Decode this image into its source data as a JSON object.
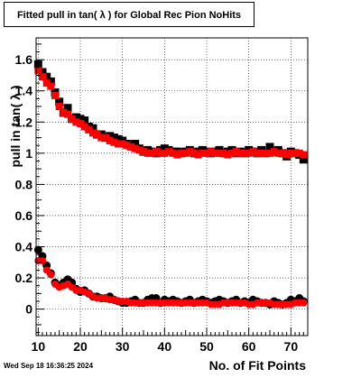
{
  "chart_data": {
    "type": "scatter",
    "title": "Fitted pull in tan( λ ) for Global Rec Pion NoHits",
    "xlabel": "No. of Fit Points",
    "ylabel": "pull in tan( λ )",
    "xlim": [
      9.5,
      74
    ],
    "ylim": [
      -0.17,
      1.74
    ],
    "xticks": [
      10,
      20,
      30,
      40,
      50,
      60,
      70
    ],
    "yticks": [
      0,
      0.2,
      0.4,
      0.6,
      0.8,
      1,
      1.2,
      1.4,
      1.6
    ],
    "ytick_labels": [
      "0",
      "0.2",
      "0.4",
      "0.6",
      "0.8",
      "1",
      "1.2",
      "1.4",
      "1.6"
    ],
    "grid": true,
    "series": [
      {
        "marker": "square",
        "color": "#000000",
        "x": [
          10,
          11,
          12,
          13,
          14,
          15,
          16,
          17,
          18,
          19,
          20,
          21,
          22,
          23,
          24,
          25,
          26,
          27,
          28,
          29,
          30,
          31,
          32,
          33,
          34,
          35,
          36,
          37,
          38,
          39,
          40,
          41,
          42,
          43,
          44,
          45,
          46,
          47,
          48,
          49,
          50,
          51,
          52,
          53,
          54,
          55,
          56,
          57,
          58,
          59,
          60,
          61,
          62,
          63,
          64,
          65,
          66,
          67,
          68,
          69,
          70,
          71,
          72,
          73
        ],
        "y": [
          1.57,
          1.52,
          1.49,
          1.46,
          1.39,
          1.33,
          1.26,
          1.29,
          1.22,
          1.23,
          1.22,
          1.21,
          1.17,
          1.16,
          1.12,
          1.12,
          1.1,
          1.11,
          1.1,
          1.09,
          1.08,
          1.06,
          1.05,
          1.06,
          1.03,
          1.01,
          1.02,
          1.01,
          1.0,
          1.02,
          1.03,
          1.02,
          1.01,
          1.01,
          1.0,
          1.01,
          1.02,
          1.0,
          1.01,
          1.02,
          1.01,
          1.0,
          1.01,
          1.02,
          1.0,
          1.01,
          1.02,
          1.0,
          1.01,
          1.0,
          1.02,
          1.01,
          1.0,
          1.02,
          1.0,
          1.04,
          1.01,
          1.02,
          1.0,
          0.98,
          1.01,
          1.0,
          0.99,
          0.96
        ]
      },
      {
        "marker": "square",
        "color": "#ff0000",
        "x": [
          10,
          11,
          12,
          13,
          14,
          15,
          16,
          17,
          18,
          19,
          20,
          21,
          22,
          23,
          24,
          25,
          26,
          27,
          28,
          29,
          30,
          31,
          32,
          33,
          34,
          35,
          36,
          37,
          38,
          39,
          40,
          41,
          42,
          43,
          44,
          45,
          46,
          47,
          48,
          49,
          50,
          51,
          52,
          53,
          54,
          55,
          56,
          57,
          58,
          59,
          60,
          61,
          62,
          63,
          64,
          65,
          66,
          67,
          68,
          69,
          70,
          71,
          72,
          73
        ],
        "y": [
          1.53,
          1.49,
          1.45,
          1.43,
          1.37,
          1.3,
          1.26,
          1.25,
          1.22,
          1.2,
          1.19,
          1.17,
          1.15,
          1.13,
          1.12,
          1.1,
          1.1,
          1.08,
          1.07,
          1.06,
          1.06,
          1.05,
          1.04,
          1.03,
          1.02,
          1.01,
          1.0,
          1.0,
          1.01,
          1.0,
          1.0,
          1.01,
          1.0,
          0.99,
          1.0,
          1.0,
          1.01,
          1.0,
          0.99,
          1.0,
          1.0,
          1.01,
          1.0,
          1.0,
          1.0,
          0.99,
          1.0,
          1.01,
          1.0,
          1.0,
          1.0,
          1.01,
          1.0,
          1.0,
          1.0,
          1.0,
          1.01,
          1.0,
          1.0,
          0.99,
          1.0,
          1.0,
          1.0,
          0.99
        ]
      },
      {
        "marker": "circle",
        "color": "#000000",
        "x": [
          10,
          11,
          12,
          13,
          14,
          15,
          16,
          17,
          18,
          19,
          20,
          21,
          22,
          23,
          24,
          25,
          26,
          27,
          28,
          29,
          30,
          31,
          32,
          33,
          34,
          35,
          36,
          37,
          38,
          39,
          40,
          41,
          42,
          43,
          44,
          45,
          46,
          47,
          48,
          49,
          50,
          51,
          52,
          53,
          54,
          55,
          56,
          57,
          58,
          59,
          60,
          61,
          62,
          63,
          64,
          65,
          66,
          67,
          68,
          69,
          70,
          71,
          72,
          73
        ],
        "y": [
          0.38,
          0.34,
          0.28,
          0.23,
          0.17,
          0.15,
          0.17,
          0.19,
          0.17,
          0.13,
          0.11,
          0.12,
          0.1,
          0.08,
          0.08,
          0.07,
          0.07,
          0.08,
          0.06,
          0.05,
          0.04,
          0.04,
          0.05,
          0.06,
          0.04,
          0.04,
          0.06,
          0.07,
          0.07,
          0.04,
          0.06,
          0.05,
          0.06,
          0.05,
          0.04,
          0.05,
          0.06,
          0.04,
          0.05,
          0.06,
          0.05,
          0.04,
          0.05,
          0.06,
          0.05,
          0.04,
          0.05,
          0.06,
          0.04,
          0.05,
          0.04,
          0.06,
          0.05,
          0.04,
          0.04,
          0.03,
          0.05,
          0.04,
          0.03,
          0.04,
          0.06,
          0.05,
          0.07,
          0.05
        ]
      },
      {
        "marker": "circle",
        "color": "#ff0000",
        "x": [
          10,
          11,
          12,
          13,
          14,
          15,
          16,
          17,
          18,
          19,
          20,
          21,
          22,
          23,
          24,
          25,
          26,
          27,
          28,
          29,
          30,
          31,
          32,
          33,
          34,
          35,
          36,
          37,
          38,
          39,
          40,
          41,
          42,
          43,
          44,
          45,
          46,
          47,
          48,
          49,
          50,
          51,
          52,
          53,
          54,
          55,
          56,
          57,
          58,
          59,
          60,
          61,
          62,
          63,
          64,
          65,
          66,
          67,
          68,
          69,
          70,
          71,
          72,
          73
        ],
        "y": [
          0.31,
          0.31,
          0.25,
          0.22,
          0.16,
          0.14,
          0.15,
          0.16,
          0.14,
          0.12,
          0.12,
          0.11,
          0.1,
          0.08,
          0.07,
          0.07,
          0.07,
          0.06,
          0.06,
          0.05,
          0.05,
          0.05,
          0.04,
          0.04,
          0.04,
          0.04,
          0.04,
          0.04,
          0.04,
          0.04,
          0.04,
          0.04,
          0.04,
          0.04,
          0.04,
          0.04,
          0.04,
          0.04,
          0.04,
          0.04,
          0.04,
          0.03,
          0.03,
          0.03,
          0.04,
          0.04,
          0.04,
          0.04,
          0.04,
          0.04,
          0.03,
          0.03,
          0.04,
          0.04,
          0.04,
          0.04,
          0.03,
          0.03,
          0.03,
          0.03,
          0.03,
          0.04,
          0.04,
          0.04
        ]
      }
    ]
  },
  "footer": {
    "timestamp": "Wed Sep 18 16:36:25 2024"
  }
}
